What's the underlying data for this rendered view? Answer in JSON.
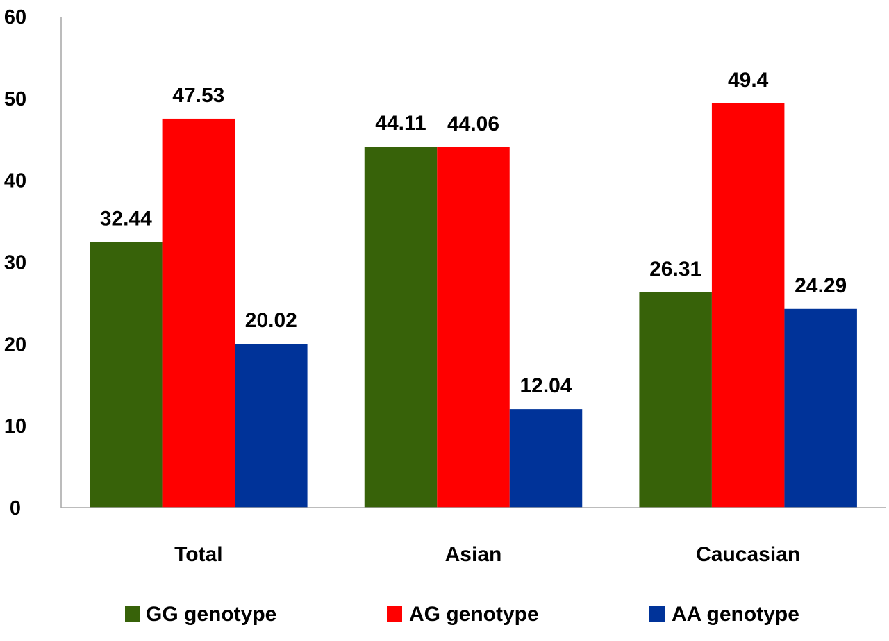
{
  "chart_data": {
    "type": "bar",
    "title": "",
    "xlabel": "",
    "ylabel": "",
    "categories": [
      "Total",
      "Asian",
      "Caucasian"
    ],
    "series": [
      {
        "name": "GG genotype",
        "color": "#376209",
        "values": [
          32.44,
          44.11,
          26.31
        ],
        "labels": [
          "32.44",
          "44.11",
          "26.31"
        ]
      },
      {
        "name": "AG genotype",
        "color": "#ff0000",
        "values": [
          47.53,
          44.06,
          49.4
        ],
        "labels": [
          "47.53",
          "44.06",
          "49.4"
        ]
      },
      {
        "name": "AA genotype",
        "color": "#003399",
        "values": [
          20.02,
          12.04,
          24.29
        ],
        "labels": [
          "20.02",
          "12.04",
          "24.29"
        ]
      }
    ],
    "ylim": [
      0,
      60
    ],
    "yticks": [
      "0",
      "10",
      "20",
      "30",
      "40",
      "50",
      "60"
    ],
    "grid": false,
    "legend_position": "bottom",
    "data_labels": true
  }
}
